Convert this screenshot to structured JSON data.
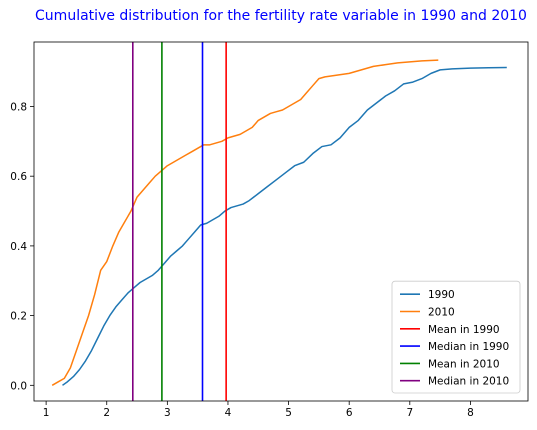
{
  "chart_data": {
    "type": "line",
    "title": "Cumulative distribution for the fertility rate variable in 1990 and 2010",
    "title_color": "#0000ff",
    "xlabel": "",
    "ylabel": "",
    "xlim": [
      0.8,
      8.95
    ],
    "ylim": [
      -0.045,
      0.985
    ],
    "xticks": [
      1,
      2,
      3,
      4,
      5,
      6,
      7,
      8
    ],
    "yticks": [
      0.0,
      0.2,
      0.4,
      0.6,
      0.8
    ],
    "grid": false,
    "legend_position": "lower-right",
    "series": [
      {
        "name": "1990",
        "color": "#1f77b4",
        "x": [
          1.27,
          1.35,
          1.45,
          1.55,
          1.65,
          1.75,
          1.85,
          1.95,
          2.05,
          2.15,
          2.25,
          2.35,
          2.45,
          2.55,
          2.65,
          2.75,
          2.85,
          2.95,
          3.05,
          3.15,
          3.25,
          3.35,
          3.45,
          3.55,
          3.65,
          3.75,
          3.85,
          3.95,
          4.05,
          4.15,
          4.25,
          4.35,
          4.5,
          4.65,
          4.8,
          4.95,
          5.1,
          5.25,
          5.4,
          5.55,
          5.7,
          5.85,
          6.0,
          6.15,
          6.3,
          6.45,
          6.6,
          6.75,
          6.9,
          7.05,
          7.2,
          7.35,
          7.5,
          7.7,
          8.0,
          8.3,
          8.6
        ],
        "y": [
          0.0,
          0.01,
          0.025,
          0.045,
          0.07,
          0.1,
          0.135,
          0.17,
          0.2,
          0.225,
          0.245,
          0.265,
          0.28,
          0.295,
          0.305,
          0.315,
          0.33,
          0.35,
          0.37,
          0.385,
          0.4,
          0.42,
          0.44,
          0.46,
          0.465,
          0.475,
          0.485,
          0.5,
          0.51,
          0.515,
          0.52,
          0.53,
          0.55,
          0.57,
          0.59,
          0.61,
          0.63,
          0.64,
          0.665,
          0.685,
          0.69,
          0.71,
          0.74,
          0.76,
          0.79,
          0.81,
          0.83,
          0.845,
          0.865,
          0.87,
          0.88,
          0.895,
          0.905,
          0.908,
          0.91,
          0.911,
          0.912
        ]
      },
      {
        "name": "2010",
        "color": "#ff7f0e",
        "x": [
          1.1,
          1.2,
          1.3,
          1.4,
          1.5,
          1.6,
          1.7,
          1.8,
          1.9,
          2.0,
          2.1,
          2.2,
          2.3,
          2.4,
          2.5,
          2.6,
          2.7,
          2.8,
          2.9,
          3.0,
          3.1,
          3.2,
          3.3,
          3.4,
          3.5,
          3.6,
          3.7,
          3.8,
          3.9,
          4.0,
          4.1,
          4.2,
          4.3,
          4.4,
          4.5,
          4.6,
          4.7,
          4.8,
          4.9,
          5.0,
          5.1,
          5.2,
          5.3,
          5.4,
          5.5,
          5.6,
          5.8,
          6.0,
          6.2,
          6.4,
          6.6,
          6.8,
          7.0,
          7.2,
          7.47
        ],
        "y": [
          0.0,
          0.01,
          0.02,
          0.05,
          0.1,
          0.15,
          0.2,
          0.26,
          0.33,
          0.355,
          0.4,
          0.44,
          0.47,
          0.5,
          0.54,
          0.56,
          0.58,
          0.6,
          0.615,
          0.63,
          0.64,
          0.65,
          0.66,
          0.67,
          0.68,
          0.69,
          0.69,
          0.695,
          0.7,
          0.71,
          0.715,
          0.72,
          0.73,
          0.74,
          0.76,
          0.77,
          0.78,
          0.785,
          0.79,
          0.8,
          0.81,
          0.82,
          0.84,
          0.86,
          0.88,
          0.885,
          0.89,
          0.895,
          0.905,
          0.915,
          0.92,
          0.925,
          0.928,
          0.931,
          0.933
        ]
      },
      {
        "name": "Mean in 1990",
        "color": "#ff0000",
        "type": "vline",
        "x": 3.97
      },
      {
        "name": "Median in 1990",
        "color": "#0000ff",
        "type": "vline",
        "x": 3.58
      },
      {
        "name": "Mean in 2010",
        "color": "#008000",
        "type": "vline",
        "x": 2.91
      },
      {
        "name": "Median in 2010",
        "color": "#800080",
        "type": "vline",
        "x": 2.43
      }
    ]
  }
}
